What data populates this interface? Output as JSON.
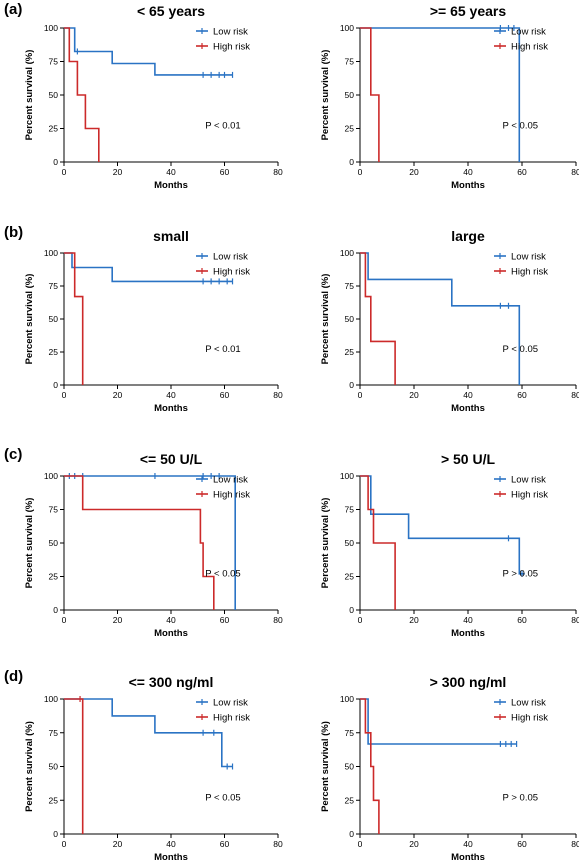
{
  "panel_labels": [
    "(a)",
    "(b)",
    "(c)",
    "(d)"
  ],
  "colors": {
    "low_risk": "#2a73c4",
    "high_risk": "#cc2a2a",
    "axis": "#000000"
  },
  "chart_data": [
    {
      "type": "line",
      "title": "< 65 years",
      "xlabel": "Months",
      "ylabel": "Percent survival (%)",
      "xlim": [
        0,
        80
      ],
      "ylim": [
        0,
        100
      ],
      "xticks": [
        0,
        20,
        40,
        60,
        80
      ],
      "yticks": [
        0,
        25,
        50,
        75,
        100
      ],
      "legend_position": "top-right",
      "annotation": "P < 0.01",
      "series": [
        {
          "name": "Low risk",
          "color": "#2a73c4",
          "steps": [
            [
              0,
              100
            ],
            [
              4,
              100
            ],
            [
              4,
              82.5
            ],
            [
              18,
              82.5
            ],
            [
              18,
              73.5
            ],
            [
              34,
              73.5
            ],
            [
              34,
              65
            ],
            [
              63,
              65
            ]
          ],
          "censored": [
            [
              5,
              82.5
            ],
            [
              52,
              65
            ],
            [
              55,
              65
            ],
            [
              58,
              65
            ],
            [
              60,
              65
            ],
            [
              63,
              65
            ]
          ]
        },
        {
          "name": "High risk",
          "color": "#cc2a2a",
          "steps": [
            [
              0,
              100
            ],
            [
              2,
              100
            ],
            [
              2,
              75
            ],
            [
              5,
              75
            ],
            [
              5,
              50
            ],
            [
              8,
              50
            ],
            [
              8,
              25
            ],
            [
              13,
              25
            ],
            [
              13,
              0
            ]
          ],
          "censored": []
        }
      ]
    },
    {
      "type": "line",
      "title": ">= 65 years",
      "xlabel": "Months",
      "ylabel": "Percent survival (%)",
      "xlim": [
        0,
        80
      ],
      "ylim": [
        0,
        100
      ],
      "xticks": [
        0,
        20,
        40,
        60,
        80
      ],
      "yticks": [
        0,
        25,
        50,
        75,
        100
      ],
      "legend_position": "top-right",
      "annotation": "P < 0.05",
      "series": [
        {
          "name": "Low risk",
          "color": "#2a73c4",
          "steps": [
            [
              0,
              100
            ],
            [
              59,
              100
            ],
            [
              59,
              0
            ]
          ],
          "censored": [
            [
              52,
              100
            ],
            [
              55,
              100
            ],
            [
              57,
              100
            ]
          ]
        },
        {
          "name": "High risk",
          "color": "#cc2a2a",
          "steps": [
            [
              0,
              100
            ],
            [
              4,
              100
            ],
            [
              4,
              50
            ],
            [
              7,
              50
            ],
            [
              7,
              0
            ]
          ],
          "censored": []
        }
      ]
    },
    {
      "type": "line",
      "title": "small",
      "xlabel": "Months",
      "ylabel": "Percent survival (%)",
      "xlim": [
        0,
        80
      ],
      "ylim": [
        0,
        100
      ],
      "xticks": [
        0,
        20,
        40,
        60,
        80
      ],
      "yticks": [
        0,
        25,
        50,
        75,
        100
      ],
      "legend_position": "top-right",
      "annotation": "P < 0.01",
      "series": [
        {
          "name": "Low risk",
          "color": "#2a73c4",
          "steps": [
            [
              0,
              100
            ],
            [
              3,
              100
            ],
            [
              3,
              89
            ],
            [
              18,
              89
            ],
            [
              18,
              78.5
            ],
            [
              63,
              78.5
            ]
          ],
          "censored": [
            [
              4,
              89
            ],
            [
              52,
              78.5
            ],
            [
              55,
              78.5
            ],
            [
              58,
              78.5
            ],
            [
              61,
              78.5
            ],
            [
              63,
              78.5
            ]
          ]
        },
        {
          "name": "High risk",
          "color": "#cc2a2a",
          "steps": [
            [
              0,
              100
            ],
            [
              4,
              100
            ],
            [
              4,
              67
            ],
            [
              7,
              67
            ],
            [
              7,
              0
            ]
          ],
          "censored": []
        }
      ]
    },
    {
      "type": "line",
      "title": "large",
      "xlabel": "Months",
      "ylabel": "Percent survival (%)",
      "xlim": [
        0,
        80
      ],
      "ylim": [
        0,
        100
      ],
      "xticks": [
        0,
        20,
        40,
        60,
        80
      ],
      "yticks": [
        0,
        25,
        50,
        75,
        100
      ],
      "legend_position": "top-right",
      "annotation": "P < 0.05",
      "series": [
        {
          "name": "Low risk",
          "color": "#2a73c4",
          "steps": [
            [
              0,
              100
            ],
            [
              3,
              100
            ],
            [
              3,
              80
            ],
            [
              34,
              80
            ],
            [
              34,
              60
            ],
            [
              59,
              60
            ],
            [
              59,
              0
            ]
          ],
          "censored": [
            [
              52,
              60
            ],
            [
              55,
              60
            ]
          ]
        },
        {
          "name": "High risk",
          "color": "#cc2a2a",
          "steps": [
            [
              0,
              100
            ],
            [
              2,
              100
            ],
            [
              2,
              67
            ],
            [
              4,
              67
            ],
            [
              4,
              33
            ],
            [
              13,
              33
            ],
            [
              13,
              0
            ]
          ],
          "censored": []
        }
      ]
    },
    {
      "type": "line",
      "title": "<= 50 U/L",
      "xlabel": "Months",
      "ylabel": "Percent survival (%)",
      "xlim": [
        0,
        80
      ],
      "ylim": [
        0,
        100
      ],
      "xticks": [
        0,
        20,
        40,
        60,
        80
      ],
      "yticks": [
        0,
        25,
        50,
        75,
        100
      ],
      "legend_position": "top-right",
      "annotation": "P < 0.05",
      "series": [
        {
          "name": "Low risk",
          "color": "#2a73c4",
          "steps": [
            [
              0,
              100
            ],
            [
              64,
              100
            ],
            [
              64,
              0
            ]
          ],
          "censored": [
            [
              2,
              100
            ],
            [
              4,
              100
            ],
            [
              7,
              100
            ],
            [
              34,
              100
            ],
            [
              52,
              100
            ],
            [
              55,
              100
            ],
            [
              58,
              100
            ]
          ]
        },
        {
          "name": "High risk",
          "color": "#cc2a2a",
          "steps": [
            [
              0,
              100
            ],
            [
              7,
              100
            ],
            [
              7,
              75
            ],
            [
              51,
              75
            ],
            [
              51,
              50
            ],
            [
              52,
              50
            ],
            [
              52,
              25
            ],
            [
              56,
              25
            ],
            [
              56,
              0
            ]
          ],
          "censored": []
        }
      ]
    },
    {
      "type": "line",
      "title": "> 50 U/L",
      "xlabel": "Months",
      "ylabel": "Percent survival (%)",
      "xlim": [
        0,
        80
      ],
      "ylim": [
        0,
        100
      ],
      "xticks": [
        0,
        20,
        40,
        60,
        80
      ],
      "yticks": [
        0,
        25,
        50,
        75,
        100
      ],
      "legend_position": "top-right",
      "annotation": "P > 0.05",
      "series": [
        {
          "name": "Low risk",
          "color": "#2a73c4",
          "steps": [
            [
              0,
              100
            ],
            [
              4,
              100
            ],
            [
              4,
              71.5
            ],
            [
              18,
              71.5
            ],
            [
              18,
              53.5
            ],
            [
              59,
              53.5
            ],
            [
              59,
              27
            ],
            [
              61,
              27
            ]
          ],
          "censored": [
            [
              5,
              71.5
            ],
            [
              55,
              53.5
            ],
            [
              60,
              27
            ]
          ]
        },
        {
          "name": "High risk",
          "color": "#cc2a2a",
          "steps": [
            [
              0,
              100
            ],
            [
              3,
              100
            ],
            [
              3,
              75
            ],
            [
              5,
              75
            ],
            [
              5,
              50
            ],
            [
              13,
              50
            ],
            [
              13,
              0
            ]
          ],
          "censored": []
        }
      ]
    },
    {
      "type": "line",
      "title": "<= 300 ng/ml",
      "xlabel": "Months",
      "ylabel": "Percent survival (%)",
      "xlim": [
        0,
        80
      ],
      "ylim": [
        0,
        100
      ],
      "xticks": [
        0,
        20,
        40,
        60,
        80
      ],
      "yticks": [
        0,
        25,
        50,
        75,
        100
      ],
      "legend_position": "top-right",
      "annotation": "P < 0.05",
      "series": [
        {
          "name": "Low risk",
          "color": "#2a73c4",
          "steps": [
            [
              0,
              100
            ],
            [
              18,
              100
            ],
            [
              18,
              87.5
            ],
            [
              34,
              87.5
            ],
            [
              34,
              75
            ],
            [
              59,
              75
            ],
            [
              59,
              50
            ],
            [
              63,
              50
            ]
          ],
          "censored": [
            [
              52,
              75
            ],
            [
              56,
              75
            ],
            [
              61,
              50
            ],
            [
              63,
              50
            ]
          ]
        },
        {
          "name": "High risk",
          "color": "#cc2a2a",
          "steps": [
            [
              0,
              100
            ],
            [
              7,
              100
            ],
            [
              7,
              0
            ]
          ],
          "censored": [
            [
              6,
              100
            ]
          ]
        }
      ]
    },
    {
      "type": "line",
      "title": "> 300 ng/ml",
      "xlabel": "Months",
      "ylabel": "Percent survival (%)",
      "xlim": [
        0,
        80
      ],
      "ylim": [
        0,
        100
      ],
      "xticks": [
        0,
        20,
        40,
        60,
        80
      ],
      "yticks": [
        0,
        25,
        50,
        75,
        100
      ],
      "legend_position": "top-right",
      "annotation": "P > 0.05",
      "series": [
        {
          "name": "Low risk",
          "color": "#2a73c4",
          "steps": [
            [
              0,
              100
            ],
            [
              3,
              100
            ],
            [
              3,
              66.7
            ],
            [
              58,
              66.7
            ]
          ],
          "censored": [
            [
              52,
              66.7
            ],
            [
              54,
              66.7
            ],
            [
              56,
              66.7
            ],
            [
              58,
              66.7
            ]
          ]
        },
        {
          "name": "High risk",
          "color": "#cc2a2a",
          "steps": [
            [
              0,
              100
            ],
            [
              2,
              100
            ],
            [
              2,
              75
            ],
            [
              4,
              75
            ],
            [
              4,
              50
            ],
            [
              5,
              50
            ],
            [
              5,
              25
            ],
            [
              7,
              25
            ],
            [
              7,
              0
            ]
          ],
          "censored": []
        }
      ]
    }
  ]
}
